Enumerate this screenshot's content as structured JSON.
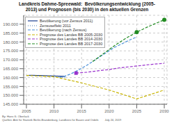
{
  "chart_data": {
    "type": "line",
    "title": "Landkreis Dahme-Spreewald:  Bevölkerungsentwicklung (2005-\n2013) und Prognosen (bis 2030) in den aktuellen Grenzen",
    "xlim": [
      2004.5,
      2030.5
    ],
    "xticks": [
      2005,
      2010,
      2015,
      2020,
      2025,
      2030
    ],
    "ylim": [
      145000,
      195000
    ],
    "yticks": [
      {
        "value": 145000,
        "label": "145.000"
      },
      {
        "value": 150000,
        "label": "150.000"
      },
      {
        "value": 155000,
        "label": "155.000"
      },
      {
        "value": 160000,
        "label": "160.000"
      },
      {
        "value": 165000,
        "label": "165.000"
      },
      {
        "value": 170000,
        "label": "170.000"
      },
      {
        "value": 175000,
        "label": "175.000"
      },
      {
        "value": 180000,
        "label": "180.000"
      },
      {
        "value": 185000,
        "label": "185.000"
      },
      {
        "value": 190000,
        "label": "190.000"
      }
    ],
    "grid": true,
    "legend": "upper left",
    "series": [
      {
        "name": "Bevölkerung (vor Zensus 2011)",
        "color": "#1a3c8f",
        "line_style": "solid",
        "x": [
          2005,
          2006,
          2007,
          2008,
          2009,
          2010,
          2011,
          2012
        ],
        "values": [
          161200,
          161300,
          161200,
          161100,
          161000,
          160900,
          160800,
          160700
        ]
      },
      {
        "name": "Zensuseffekt 2011",
        "color": "#4a7ab5",
        "line_style": "dotted",
        "x": [
          2010,
          2011,
          2012
        ],
        "values": [
          160900,
          160500,
          160100
        ]
      },
      {
        "name": "Bevölkerung (nach Zensus)",
        "color": "#4a90d9",
        "line_style": "dashed",
        "x": [
          2011,
          2012,
          2013,
          2014,
          2015,
          2016,
          2017,
          2018,
          2019,
          2020,
          2021,
          2022,
          2023,
          2024,
          2025
        ],
        "values": [
          160100,
          160800,
          162000,
          163500,
          165200,
          167000,
          169000,
          171000,
          173000,
          175000,
          177000,
          178500,
          180000,
          181500,
          182800
        ]
      },
      {
        "name": "Prognose des Landes BB 2005-2030",
        "color": "#c8b400",
        "line_style": "dashed",
        "x": [
          2005,
          2010,
          2015,
          2020,
          2025,
          2030
        ],
        "values": [
          161200,
          160500,
          157000,
          153000,
          148000,
          153000
        ]
      },
      {
        "name": "Prognose des Landes BB 2014-2030",
        "color": "#9932cc",
        "line_style": "dashed",
        "x": [
          2014,
          2016,
          2018,
          2020,
          2022,
          2025,
          2028,
          2030
        ],
        "values": [
          162500,
          163000,
          163800,
          164500,
          165500,
          166500,
          167500,
          168000
        ]
      },
      {
        "name": "Prognose des Landes BB 2017-2030",
        "color": "#228b22",
        "line_style": "dashed",
        "x": [
          2017,
          2019,
          2021,
          2023,
          2025,
          2027,
          2030
        ],
        "values": [
          169000,
          173500,
          178000,
          182000,
          185500,
          188500,
          192500
        ]
      }
    ],
    "markers": [
      {
        "x": 2025,
        "y": 185500,
        "color": "#228b22",
        "marker": "circle"
      },
      {
        "x": 2030,
        "y": 192500,
        "color": "#228b22",
        "marker": "circle"
      },
      {
        "x": 2014,
        "y": 162500,
        "color": "#9932cc",
        "marker": "square"
      }
    ],
    "annotations": [
      "By: Hans G. Oberlack",
      "Quellen: Amt für Statistik Berlin-Brandenburg, Landkreis für Bauen und Ordeln        July 24, 2019"
    ]
  }
}
